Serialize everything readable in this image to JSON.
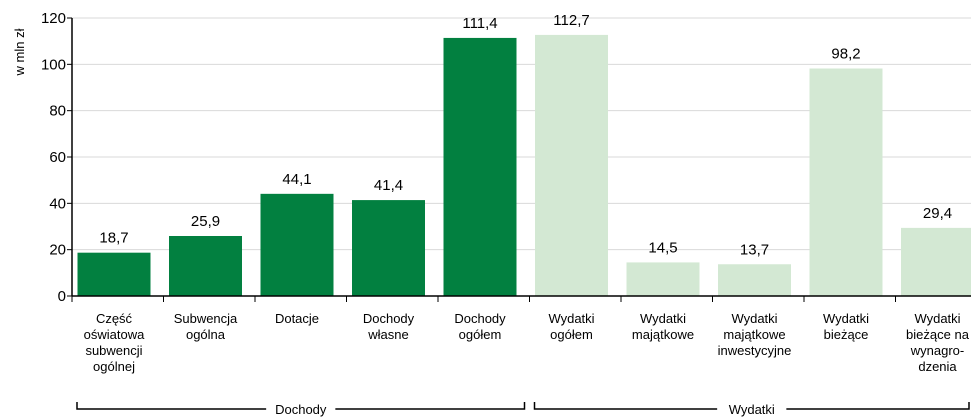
{
  "chart_data": {
    "type": "bar",
    "ylabel": "w mln zł",
    "ylim": [
      0,
      120
    ],
    "yticks": [
      0,
      20,
      40,
      60,
      80,
      100,
      120
    ],
    "grid": true,
    "categories": [
      [
        "Część",
        "oświatowa",
        "subwencji",
        "ogólnej"
      ],
      [
        "Subwencja",
        "ogólna"
      ],
      [
        "Dotacje"
      ],
      [
        "Dochody",
        "własne"
      ],
      [
        "Dochody",
        "ogółem"
      ],
      [
        "Wydatki",
        "ogółem"
      ],
      [
        "Wydatki",
        "majątkowe"
      ],
      [
        "Wydatki",
        "majątkowe",
        "inwestycyjne"
      ],
      [
        "Wydatki",
        "bieżące"
      ],
      [
        "Wydatki",
        "bieżące na",
        "wynagro-",
        "dzenia"
      ]
    ],
    "values": [
      18.7,
      25.9,
      44.1,
      41.4,
      111.4,
      112.7,
      14.5,
      13.7,
      98.2,
      29.4
    ],
    "value_labels": [
      "18,7",
      "25,9",
      "44,1",
      "41,4",
      "111,4",
      "112,7",
      "14,5",
      "13,7",
      "98,2",
      "29,4"
    ],
    "groups": [
      {
        "label": "Dochody",
        "start": 0,
        "end": 4,
        "color": "#028040"
      },
      {
        "label": "Wydatki",
        "start": 5,
        "end": 9,
        "color": "#d3e8d3"
      }
    ]
  }
}
